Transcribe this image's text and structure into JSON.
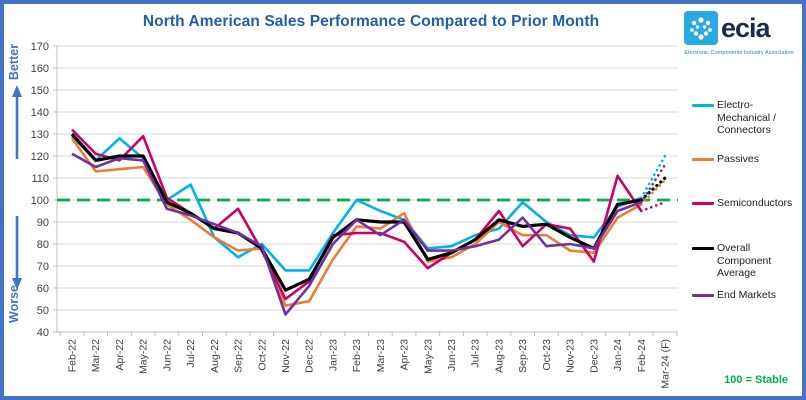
{
  "title": "North American Sales Performance Compared to Prior Month",
  "axis_labels": {
    "better": "Better",
    "worse": "Worse"
  },
  "footnote": "100 = Stable",
  "logo": {
    "name": "ecia",
    "subtitle": "Electronic Components Industry Association"
  },
  "colors": {
    "title": "#1F5FA8",
    "border": "#4472C4",
    "arrow": "#4472C4",
    "grid": "#D9D9D9",
    "axis": "#BFBFBF",
    "tick_text": "#404040",
    "reference_green": "#00B050",
    "logo_blue": "#29ABE2",
    "logo_navy": "#1B2A4A"
  },
  "chart_data": {
    "type": "line",
    "title": "North American Sales Performance Compared to Prior Month",
    "ylim": [
      40,
      170
    ],
    "ytick_step": 10,
    "grid": true,
    "legend_position": "right",
    "reference_line": {
      "value": 100,
      "label": "100 = Stable",
      "color": "#00B050",
      "style": "dashed"
    },
    "forecast_last_segment_dotted": true,
    "categories": [
      "Feb-22",
      "Mar-22",
      "Apr-22",
      "May-22",
      "Jun-22",
      "Jul-22",
      "Aug-22",
      "Sep-22",
      "Oct-22",
      "Nov-22",
      "Dec-22",
      "Jan-23",
      "Feb-23",
      "Mar-23",
      "Apr-23",
      "May-23",
      "Jun-23",
      "Jul-23",
      "Aug-23",
      "Sep-23",
      "Oct-23",
      "Nov-23",
      "Dec-23",
      "Jan-24",
      "Feb-24",
      "Mar-24 (F)"
    ],
    "series": [
      {
        "name": "Electro-Mechanical / Connectors",
        "color": "#00B0F0",
        "values": [
          129,
          118,
          128,
          119,
          100,
          107,
          83,
          74,
          80,
          68,
          68,
          85,
          100,
          95,
          91,
          78,
          79,
          84,
          87,
          99,
          90,
          84,
          83,
          97,
          101,
          120
        ]
      },
      {
        "name": "Passives",
        "color": "#ED7D31",
        "values": [
          128,
          113,
          114,
          115,
          98,
          91,
          83,
          77,
          78,
          52,
          54,
          73,
          88,
          87,
          94,
          72,
          74,
          80,
          90,
          84,
          84,
          77,
          76,
          92,
          98,
          109
        ]
      },
      {
        "name": "Semiconductors",
        "color": "#CC0066",
        "values": [
          132,
          121,
          118,
          129,
          101,
          94,
          87,
          96,
          77,
          55,
          63,
          84,
          85,
          85,
          81,
          69,
          76,
          82,
          95,
          79,
          89,
          87,
          72,
          111,
          95,
          99
        ]
      },
      {
        "name": "Overall Component Average",
        "color": "#000000",
        "values": [
          130,
          118,
          120,
          120,
          99,
          94,
          87,
          85,
          78,
          59,
          64,
          83,
          91,
          90,
          90,
          73,
          76,
          82,
          91,
          88,
          89,
          83,
          78,
          98,
          100,
          110
        ]
      },
      {
        "name": "End Markets",
        "color": "#7030A0",
        "values": [
          121,
          115,
          119,
          118,
          96,
          93,
          89,
          85,
          79,
          48,
          61,
          80,
          91,
          84,
          91,
          77,
          77,
          79,
          82,
          92,
          79,
          80,
          78,
          95,
          99,
          116
        ]
      }
    ]
  }
}
